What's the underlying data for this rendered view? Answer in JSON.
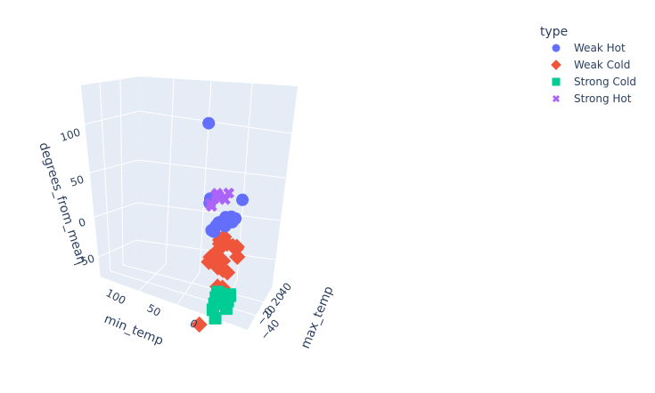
{
  "chart_data": {
    "type": "scatter3d",
    "axes": {
      "x": {
        "title": "min_temp",
        "ticks": [
          "100",
          "50",
          "0"
        ]
      },
      "y": {
        "title": "max_temp",
        "ticks": [
          "40",
          "20",
          "0",
          "−20",
          "−40"
        ]
      },
      "z": {
        "title": "degrees_from_mean",
        "ticks": [
          "100",
          "50",
          "0",
          "−50"
        ]
      }
    },
    "legend": {
      "title": "type",
      "position": "top-right",
      "entries": [
        {
          "name": "Weak Hot",
          "color": "#636efa",
          "symbol": "circle"
        },
        {
          "name": "Weak Cold",
          "color": "#ef553b",
          "symbol": "diamond"
        },
        {
          "name": "Strong Cold",
          "color": "#00cc96",
          "symbol": "square"
        },
        {
          "name": "Strong Hot",
          "color": "#ab63fa",
          "symbol": "x"
        }
      ]
    },
    "series": [
      {
        "name": "Weak Hot",
        "points": [
          [
            60,
            10,
            130
          ],
          [
            55,
            5,
            45
          ],
          [
            57,
            7,
            40
          ],
          [
            30,
            25,
            30
          ],
          [
            40,
            10,
            18
          ],
          [
            45,
            5,
            15
          ],
          [
            50,
            8,
            12
          ],
          [
            38,
            18,
            10
          ],
          [
            42,
            12,
            8
          ],
          [
            35,
            20,
            12
          ],
          [
            48,
            15,
            14
          ],
          [
            52,
            3,
            9
          ],
          [
            44,
            -5,
            7
          ],
          [
            36,
            14,
            16
          ],
          [
            40,
            22,
            9
          ]
        ]
      },
      {
        "name": "Weak Cold",
        "points": [
          [
            40,
            0,
            -5
          ],
          [
            35,
            5,
            -12
          ],
          [
            45,
            10,
            -8
          ],
          [
            30,
            15,
            -20
          ],
          [
            50,
            -5,
            -25
          ],
          [
            38,
            20,
            -18
          ],
          [
            42,
            8,
            -30
          ],
          [
            36,
            -10,
            -15
          ],
          [
            48,
            12,
            -10
          ],
          [
            33,
            18,
            -22
          ],
          [
            44,
            2,
            -35
          ],
          [
            55,
            30,
            -5
          ],
          [
            30,
            -20,
            -55
          ],
          [
            60,
            35,
            -62
          ],
          [
            45,
            -30,
            -90
          ],
          [
            40,
            5,
            -40
          ],
          [
            52,
            14,
            -28
          ],
          [
            34,
            22,
            -32
          ],
          [
            46,
            -8,
            -20
          ],
          [
            38,
            10,
            -45
          ]
        ]
      },
      {
        "name": "Strong Cold",
        "points": [
          [
            40,
            -5,
            -62
          ],
          [
            45,
            0,
            -68
          ],
          [
            35,
            10,
            -72
          ],
          [
            50,
            5,
            -75
          ],
          [
            42,
            -10,
            -80
          ],
          [
            38,
            8,
            -85
          ],
          [
            48,
            12,
            -66
          ],
          [
            36,
            -15,
            -90
          ],
          [
            44,
            20,
            -78
          ],
          [
            30,
            2,
            -70
          ]
        ]
      },
      {
        "name": "Strong Hot",
        "points": [
          [
            45,
            5,
            45
          ],
          [
            50,
            10,
            48
          ],
          [
            40,
            0,
            42
          ],
          [
            55,
            15,
            46
          ],
          [
            35,
            8,
            44
          ],
          [
            48,
            -5,
            40
          ],
          [
            42,
            12,
            38
          ],
          [
            52,
            3,
            36
          ]
        ]
      }
    ]
  }
}
